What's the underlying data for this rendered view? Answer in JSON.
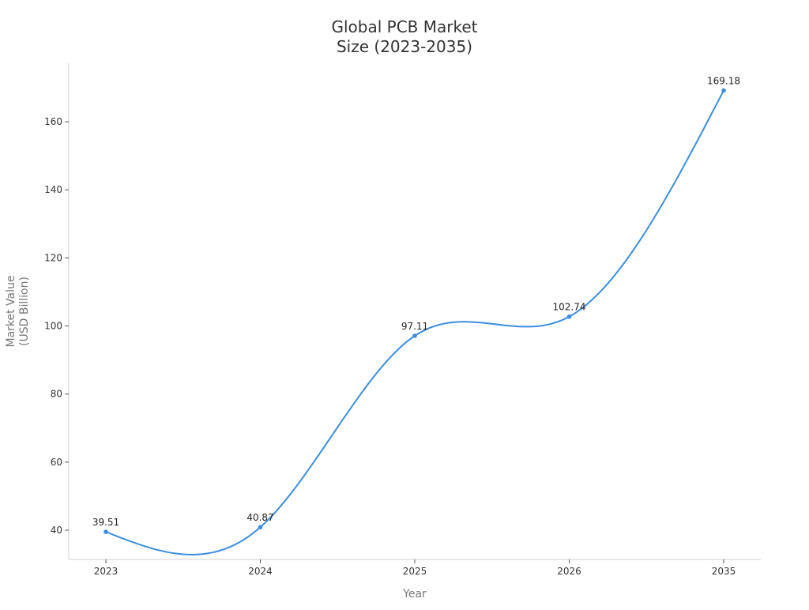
{
  "chart_data": {
    "type": "line",
    "title": [
      "Global PCB Market",
      "Size (2023-2035)"
    ],
    "xlabel": "Year",
    "ylabel": [
      "Market Value",
      "(USD Billion)"
    ],
    "categories": [
      "2023",
      "2024",
      "2025",
      "2026",
      "2035"
    ],
    "series": [
      {
        "name": "Market Value",
        "values": [
          39.51,
          40.87,
          97.11,
          102.74,
          169.18
        ],
        "labels": [
          "39.51",
          "40.87",
          "97.11",
          "102.74",
          "169.18"
        ]
      }
    ],
    "ylim": [
      31.4,
      177.2
    ],
    "yticks": [
      40,
      60,
      80,
      100,
      120,
      140,
      160
    ],
    "grid": false,
    "smooth": true,
    "color": "#3a8ee0"
  }
}
